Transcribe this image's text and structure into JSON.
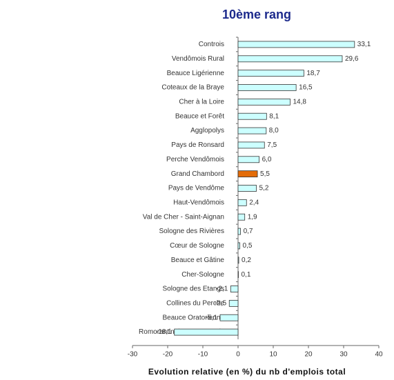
{
  "chart_data": {
    "type": "bar",
    "orientation": "horizontal",
    "title": "10ème rang",
    "x_label": "Evolution relative (en %) du nb d'emplois total",
    "categories": [
      "Controis",
      "Vendômois Rural",
      "Beauce Ligérienne",
      "Coteaux de la Braye",
      "Cher à la Loire",
      "Beauce et Forêt",
      "Agglopolys",
      "Pays de Ronsard",
      "Perche Vendômois",
      "Grand Chambord",
      "Pays de Vendôme",
      "Haut-Vendômois",
      "Val de Cher - Saint-Aignan",
      "Sologne des Rivières",
      "Cœur de Sologne",
      "Beauce et Gâtine",
      "Cher-Sologne",
      "Sologne des Etangs",
      "Collines du Perche",
      "Beauce Oratorienne",
      "Romorantinais et Monestois"
    ],
    "values": [
      33.1,
      29.6,
      18.7,
      16.5,
      14.8,
      8.1,
      8.0,
      7.5,
      6.0,
      5.5,
      5.2,
      2.4,
      1.9,
      0.7,
      0.5,
      0.2,
      0.1,
      -2.1,
      -2.5,
      -5.1,
      -18.1
    ],
    "value_labels": [
      "33,1",
      "29,6",
      "18,7",
      "16,5",
      "14,8",
      "8,1",
      "8,0",
      "7,5",
      "6,0",
      "5,5",
      "5,2",
      "2,4",
      "1,9",
      "0,7",
      "0,5",
      "0,2",
      "0,1",
      "-2,1",
      "-2,5",
      "-5,1",
      "-18,1"
    ],
    "colors": [
      "#ccffff",
      "#ccffff",
      "#ccffff",
      "#ccffff",
      "#ccffff",
      "#ccffff",
      "#ccffff",
      "#ccffff",
      "#ccffff",
      "#e36c09",
      "#ccffff",
      "#ccffff",
      "#ccffff",
      "#ccffff",
      "#ccffff",
      "#ccffff",
      "#ccffff",
      "#ccffff",
      "#ccffff",
      "#ccffff",
      "#ccffff"
    ],
    "xlim": [
      -30,
      40
    ],
    "xticks": [
      -30,
      -20,
      -10,
      0,
      10,
      20,
      30,
      40
    ]
  }
}
